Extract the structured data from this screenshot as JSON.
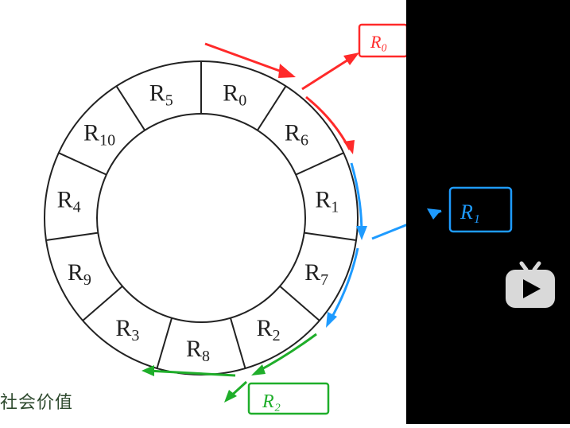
{
  "diagram": {
    "sectors": [
      {
        "label": "R",
        "sub": "0"
      },
      {
        "label": "R",
        "sub": "6"
      },
      {
        "label": "R",
        "sub": "1"
      },
      {
        "label": "R",
        "sub": "7"
      },
      {
        "label": "R",
        "sub": "2"
      },
      {
        "label": "R",
        "sub": "8"
      },
      {
        "label": "R",
        "sub": "3"
      },
      {
        "label": "R",
        "sub": "9"
      },
      {
        "label": "R",
        "sub": "4"
      },
      {
        "label": "R",
        "sub": "10"
      },
      {
        "label": "R",
        "sub": "5"
      }
    ],
    "annotations": [
      {
        "text": "R₀",
        "color": "#ff2a2a"
      },
      {
        "text": "R₁",
        "color": "#1e9bff"
      },
      {
        "text": "R₂",
        "color": "#1fae2a"
      }
    ]
  },
  "caption": "社会价值",
  "icons": {
    "player": "tv-play-icon"
  },
  "colors": {
    "red": "#ff2a2a",
    "blue": "#1e9bff",
    "green": "#1fae2a"
  }
}
